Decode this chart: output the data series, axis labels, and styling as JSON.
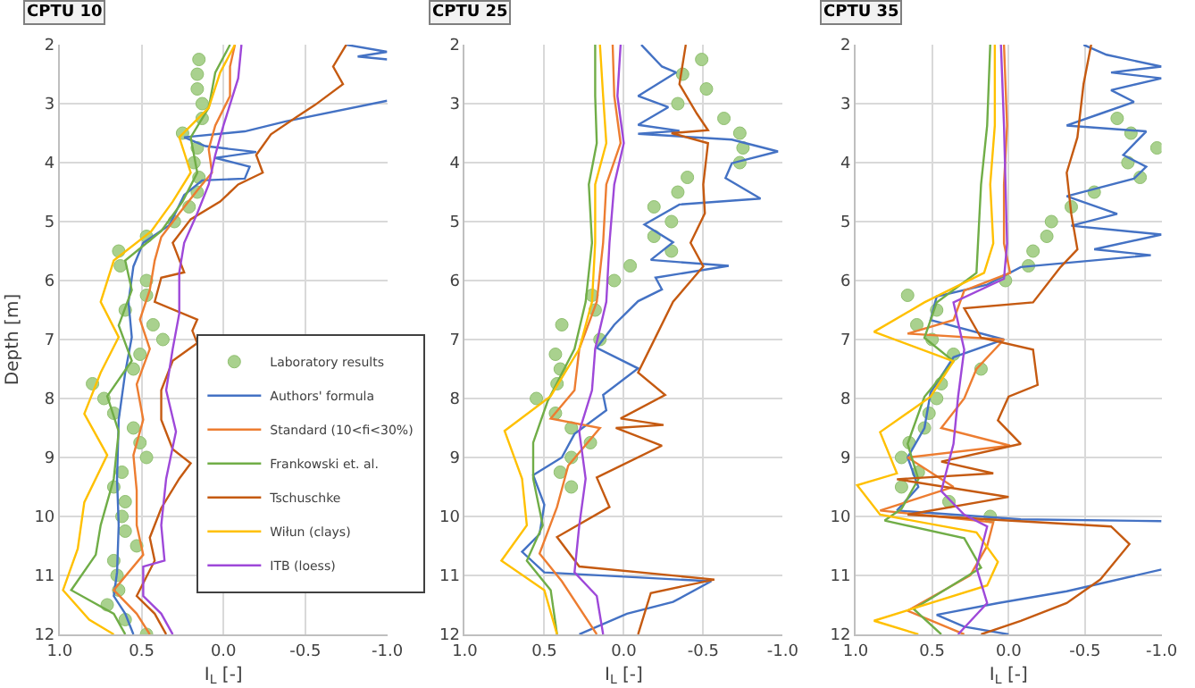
{
  "chart_data": [
    {
      "type": "line",
      "title": "CPTU 10",
      "xlabel": "I$_{L}$ [-]",
      "ylabel": "Depth [m]",
      "xlim": [
        1.0,
        -1.0
      ],
      "ylim": [
        12,
        2
      ],
      "xticks": [
        {
          "value": 1.0,
          "label": "1.0"
        },
        {
          "value": 0.5,
          "label": "0.5"
        },
        {
          "value": 0.0,
          "label": "0.0"
        },
        {
          "value": -0.5,
          "label": "-0.5"
        },
        {
          "value": -1.0,
          "label": "-1.0"
        }
      ],
      "yticks": [
        2,
        3,
        4,
        5,
        6,
        7,
        8,
        9,
        10,
        11,
        12
      ],
      "grid": true,
      "legend": "bottom right",
      "series": [
        {
          "name": "Laboratory results",
          "type": "scatter",
          "marker": "circle",
          "color": "#a9d18e",
          "x": [
            0.15,
            0.16,
            0.16,
            0.13,
            0.13,
            0.25,
            0.16,
            0.18,
            0.15,
            0.16,
            0.21,
            0.3,
            0.47,
            0.64,
            0.63,
            0.47,
            0.47,
            0.6,
            0.43,
            0.37,
            0.51,
            0.55,
            0.8,
            0.73,
            0.67,
            0.55,
            0.51,
            0.47,
            0.62,
            0.67,
            0.6,
            0.62,
            0.6,
            0.53,
            0.67,
            0.65,
            0.64,
            0.71,
            0.6,
            0.47
          ],
          "values": [
            2.25,
            2.5,
            2.75,
            3.0,
            3.25,
            3.5,
            3.75,
            4.0,
            4.25,
            4.5,
            4.75,
            5.0,
            5.25,
            5.5,
            5.75,
            6.0,
            6.25,
            6.5,
            6.75,
            7.0,
            7.25,
            7.5,
            7.75,
            8.0,
            8.25,
            8.5,
            8.75,
            9.0,
            9.25,
            9.5,
            9.75,
            10.0,
            10.25,
            10.5,
            10.75,
            11.0,
            11.25,
            11.5,
            11.75,
            12.0
          ]
        },
        {
          "name": "Authors' formula",
          "color": "#4472c4",
          "x": [
            -0.75,
            -1.0,
            -0.82,
            -1.0,
            null,
            -1.0,
            -0.38,
            -0.13,
            0.24,
            0.11,
            -0.2,
            0.05,
            -0.16,
            -0.13,
            0.13,
            0.24,
            0.33,
            0.49,
            0.55,
            0.58,
            0.56,
            0.6,
            0.64,
            0.65,
            0.64,
            0.65,
            0.67,
            0.6,
            0.55
          ],
          "values": [
            2.0,
            2.12,
            2.2,
            2.25,
            null,
            2.95,
            3.3,
            3.47,
            3.57,
            3.72,
            3.82,
            3.92,
            4.07,
            4.27,
            4.3,
            4.55,
            5.06,
            5.36,
            5.76,
            6.36,
            6.96,
            7.56,
            8.36,
            9.36,
            10.15,
            10.95,
            11.35,
            11.65,
            12.0
          ]
        },
        {
          "name": "Standard (10<fi<30%)",
          "color": "#ed7d31",
          "x": [
            -0.07,
            -0.04,
            -0.04,
            0.05,
            0.09,
            0.07,
            0.16,
            0.27,
            0.38,
            0.42,
            0.45,
            0.51,
            0.45,
            0.53,
            0.49,
            0.55,
            0.53,
            0.53,
            0.49,
            0.67,
            0.53,
            0.45
          ],
          "values": [
            2.0,
            2.37,
            2.87,
            3.37,
            3.77,
            4.17,
            4.47,
            4.86,
            5.26,
            5.66,
            6.16,
            6.66,
            7.16,
            7.76,
            8.36,
            8.96,
            9.56,
            10.15,
            10.65,
            11.25,
            11.65,
            12.0
          ]
        },
        {
          "name": "Frankowski et. al.",
          "color": "#70ad47",
          "x": [
            -0.04,
            0.05,
            0.09,
            0.2,
            0.16,
            0.25,
            0.38,
            0.6,
            0.56,
            0.64,
            0.56,
            0.71,
            0.64,
            0.67,
            0.75,
            0.78,
            0.93,
            0.67,
            0.6
          ],
          "values": [
            2.0,
            2.47,
            3.07,
            3.57,
            4.17,
            4.66,
            5.16,
            5.66,
            6.16,
            6.76,
            7.36,
            7.96,
            8.56,
            9.36,
            10.15,
            10.65,
            11.25,
            11.65,
            12.0
          ]
        },
        {
          "name": "Tschuschke",
          "color": "#c55a11",
          "x": [
            -0.75,
            -0.67,
            -0.73,
            -0.56,
            -0.45,
            -0.29,
            -0.2,
            -0.24,
            -0.09,
            0.02,
            0.2,
            0.31,
            0.24,
            0.38,
            0.42,
            0.16,
            0.19,
            0.16,
            0.31,
            0.38,
            0.38,
            0.31,
            0.2,
            0.27,
            0.38,
            0.45,
            0.42,
            0.53,
            0.42,
            0.35
          ],
          "values": [
            2.0,
            2.37,
            2.67,
            3.02,
            3.22,
            3.52,
            3.87,
            4.17,
            4.37,
            4.66,
            4.96,
            5.36,
            5.86,
            5.95,
            6.36,
            6.66,
            6.85,
            7.06,
            7.36,
            7.86,
            8.36,
            8.86,
            9.1,
            9.36,
            9.86,
            10.36,
            10.75,
            11.35,
            11.65,
            12.0
          ]
        },
        {
          "name": "Wiłun (clays)",
          "color": "#ffc000",
          "x": [
            -0.07,
            0.02,
            0.09,
            0.27,
            0.2,
            0.31,
            0.44,
            0.67,
            0.75,
            0.64,
            0.75,
            0.85,
            0.71,
            0.85,
            0.89,
            0.98,
            0.82,
            0.67
          ],
          "values": [
            2.0,
            2.47,
            3.07,
            3.57,
            4.17,
            4.66,
            5.16,
            5.66,
            6.36,
            6.96,
            7.56,
            8.26,
            8.96,
            9.76,
            10.55,
            11.25,
            11.75,
            12.0
          ]
        },
        {
          "name": "ITB (loess)",
          "color": "#9e48d9",
          "x": [
            -0.11,
            -0.09,
            0.0,
            0.05,
            0.09,
            0.16,
            0.24,
            0.27,
            0.27,
            0.31,
            0.35,
            0.29,
            0.35,
            0.38,
            0.36,
            0.49,
            0.49,
            0.38,
            0.31
          ],
          "values": [
            2.0,
            2.57,
            3.37,
            3.87,
            4.37,
            4.86,
            5.36,
            5.86,
            6.56,
            7.16,
            7.86,
            8.56,
            9.36,
            10.15,
            10.75,
            10.85,
            11.35,
            11.65,
            12.0
          ]
        }
      ]
    },
    {
      "type": "line",
      "title": "CPTU 25",
      "xlabel": "I$_{L}$ [-]",
      "xlim": [
        1.0,
        -1.0
      ],
      "ylim": [
        12,
        2
      ],
      "xticks": [
        {
          "value": 1.0,
          "label": "1.0"
        },
        {
          "value": 0.5,
          "label": "0.5"
        },
        {
          "value": 0.0,
          "label": "0.0"
        },
        {
          "value": -0.5,
          "label": "-0.5"
        },
        {
          "value": -1.0,
          "label": "-1.0"
        }
      ],
      "yticks": [
        2,
        3,
        4,
        5,
        6,
        7,
        8,
        9,
        10,
        11,
        12
      ],
      "grid": true,
      "series": [
        {
          "type": "scatter",
          "marker": "circle",
          "color": "#a9d18e",
          "x": [
            -0.49,
            -0.37,
            -0.52,
            -0.34,
            -0.63,
            -0.73,
            -0.75,
            -0.73,
            -0.4,
            -0.34,
            -0.19,
            -0.3,
            -0.19,
            -0.3,
            -0.04,
            0.06,
            0.2,
            0.18,
            0.39,
            0.15,
            0.43,
            0.4,
            0.42,
            0.55,
            0.43,
            0.33,
            0.21,
            0.33,
            0.4,
            0.33
          ],
          "values": [
            2.25,
            2.5,
            2.75,
            3.0,
            3.25,
            3.5,
            3.75,
            4.0,
            4.25,
            4.5,
            4.75,
            5.0,
            5.25,
            5.5,
            5.75,
            6.0,
            6.25,
            6.5,
            6.75,
            7.0,
            7.25,
            7.5,
            7.75,
            8.0,
            8.25,
            8.5,
            8.75,
            9.0,
            9.25,
            9.5
          ]
        },
        {
          "type": "line",
          "color": "#4472c4",
          "x": [
            -0.11,
            -0.24,
            -0.33,
            -0.09,
            -0.28,
            -0.09,
            -0.35,
            -0.09,
            -0.68,
            -0.97,
            -0.68,
            -0.64,
            -0.86,
            -0.35,
            -0.13,
            -0.31,
            -0.17,
            -0.66,
            -0.2,
            -0.24,
            -0.09,
            0.06,
            0.17,
            -0.09,
            0.13,
            0.11,
            0.31,
            0.39,
            0.57,
            0.5,
            0.53,
            0.64,
            0.5,
            -0.55,
            -0.31,
            -0.02,
            0.28
          ],
          "values": [
            2.0,
            2.37,
            2.47,
            2.87,
            3.06,
            3.36,
            3.46,
            3.51,
            3.61,
            3.81,
            4.01,
            4.26,
            4.61,
            4.71,
            5.05,
            5.35,
            5.65,
            5.75,
            5.95,
            6.15,
            6.35,
            6.75,
            7.14,
            7.49,
            7.94,
            8.2,
            8.6,
            9.0,
            9.3,
            9.8,
            10.3,
            10.6,
            10.95,
            11.1,
            11.45,
            11.65,
            12.0
          ]
        },
        {
          "type": "line",
          "color": "#ed7d31",
          "x": [
            0.07,
            0.06,
            0.02,
            0.11,
            0.13,
            0.17,
            0.28,
            0.31,
            0.46,
            0.15,
            0.35,
            0.42,
            0.53,
            0.39,
            0.17
          ],
          "values": [
            2.0,
            2.87,
            3.67,
            4.37,
            5.36,
            6.36,
            7.16,
            7.86,
            8.34,
            8.5,
            9.14,
            9.84,
            10.63,
            11.1,
            12.0
          ]
        },
        {
          "type": "line",
          "color": "#70ad47",
          "x": [
            0.18,
            0.18,
            0.17,
            0.22,
            0.2,
            0.24,
            0.31,
            0.48,
            0.57,
            0.57,
            0.51,
            0.61,
            0.46,
            0.42
          ],
          "values": [
            2.0,
            2.87,
            3.67,
            4.37,
            5.36,
            6.36,
            7.16,
            8.05,
            8.75,
            9.36,
            10.15,
            10.75,
            11.25,
            12.0
          ]
        },
        {
          "type": "line",
          "color": "#c55a11",
          "x": [
            -0.39,
            -0.35,
            -0.46,
            -0.53,
            -0.3,
            -0.53,
            -0.5,
            -0.51,
            -0.42,
            -0.5,
            -0.31,
            -0.2,
            -0.09,
            -0.26,
            0.02,
            -0.25,
            0.05,
            -0.24,
            0.17,
            0.09,
            0.42,
            0.28,
            -0.57,
            -0.17,
            -0.09
          ],
          "values": [
            2.0,
            2.67,
            3.17,
            3.45,
            3.5,
            3.67,
            4.37,
            4.86,
            5.36,
            5.76,
            6.36,
            6.96,
            7.56,
            7.94,
            8.34,
            8.45,
            8.5,
            8.8,
            9.34,
            9.84,
            10.35,
            10.85,
            11.07,
            11.3,
            12.0
          ]
        },
        {
          "type": "line",
          "color": "#ffc000",
          "x": [
            0.15,
            0.13,
            0.11,
            0.18,
            0.18,
            0.2,
            0.28,
            0.46,
            0.75,
            0.64,
            0.61,
            0.77,
            0.5,
            0.42
          ],
          "values": [
            2.0,
            2.87,
            3.67,
            4.37,
            5.36,
            6.36,
            7.16,
            7.96,
            8.55,
            9.36,
            10.15,
            10.75,
            11.25,
            12.0
          ]
        },
        {
          "type": "line",
          "color": "#9e48d9",
          "x": [
            0.02,
            0.04,
            0.0,
            0.06,
            0.09,
            0.11,
            0.18,
            0.2,
            0.28,
            0.24,
            0.28,
            0.31,
            0.17,
            0.13
          ],
          "values": [
            2.0,
            2.87,
            3.67,
            4.37,
            5.36,
            6.36,
            7.16,
            7.86,
            8.56,
            9.36,
            10.15,
            10.95,
            11.35,
            12.0
          ]
        }
      ]
    },
    {
      "type": "line",
      "title": "CPTU 35",
      "xlabel": "I$_{L}$ [-]",
      "xlim": [
        1.0,
        -1.0
      ],
      "ylim": [
        12,
        2
      ],
      "xticks": [
        {
          "value": 1.0,
          "label": "1.0"
        },
        {
          "value": 0.5,
          "label": "0.5"
        },
        {
          "value": 0.0,
          "label": "0.0"
        },
        {
          "value": -0.5,
          "label": "-0.5"
        },
        {
          "value": -1.0,
          "label": "-1.0"
        }
      ],
      "yticks": [
        2,
        3,
        4,
        5,
        6,
        7,
        8,
        9,
        10,
        11,
        12
      ],
      "grid": true,
      "series": [
        {
          "type": "scatter",
          "marker": "circle",
          "color": "#a9d18e",
          "x": [
            -0.71,
            -0.8,
            -0.97,
            -0.78,
            -0.86,
            -0.56,
            -0.41,
            -0.28,
            -0.25,
            -0.16,
            -0.13,
            0.02,
            0.66,
            0.47,
            0.6,
            0.5,
            0.36,
            0.18,
            0.44,
            0.47,
            0.52,
            0.55,
            0.65,
            0.7,
            0.59,
            0.7,
            0.39,
            0.12
          ],
          "values": [
            3.25,
            3.5,
            3.75,
            4.0,
            4.25,
            4.5,
            4.75,
            5.0,
            5.25,
            5.5,
            5.75,
            6.0,
            6.25,
            6.5,
            6.75,
            7.0,
            7.25,
            7.5,
            7.75,
            8.0,
            8.25,
            8.5,
            8.75,
            9.0,
            9.25,
            9.5,
            9.75,
            10.0
          ]
        },
        {
          "type": "line",
          "color": "#4472c4",
          "x": [
            -0.49,
            -0.64,
            -1.0,
            -0.67,
            -1.0,
            -0.67,
            -0.82,
            -0.6,
            -0.38,
            -0.9,
            -0.75,
            -0.9,
            -0.82,
            -0.38,
            -0.71,
            -0.41,
            -1.0,
            -0.56,
            -0.93,
            -0.08,
            0.14,
            0.47,
            0.51,
            0.03,
            0.36,
            0.51,
            0.55,
            0.66,
            0.59,
            0.73,
            -0.08,
            -1.0,
            null,
            -1.0,
            -0.38,
            0.07,
            0.47,
            0.29,
            0.0
          ],
          "values": [
            2.0,
            2.17,
            2.37,
            2.47,
            2.57,
            2.77,
            2.97,
            3.17,
            3.37,
            3.47,
            3.87,
            4.07,
            4.27,
            4.57,
            4.87,
            5.07,
            5.22,
            5.47,
            5.57,
            5.77,
            6.07,
            6.27,
            6.67,
            7.0,
            7.3,
            7.9,
            8.5,
            9.0,
            9.5,
            9.9,
            10.05,
            10.08,
            null,
            10.9,
            11.27,
            11.47,
            11.67,
            11.87,
            12.0
          ]
        },
        {
          "type": "line",
          "color": "#ed7d31",
          "x": [
            0.03,
            0.01,
            0.03,
            0.03,
            -0.01,
            0.29,
            0.36,
            0.66,
            0.03,
            0.21,
            0.29,
            0.44,
            -0.01,
            0.66,
            0.36,
            0.84,
            0.1,
            0.14,
            0.25,
            0.66,
            0.29
          ],
          "values": [
            2.0,
            3.37,
            4.37,
            5.37,
            5.87,
            6.17,
            6.67,
            6.9,
            7.0,
            7.5,
            8.0,
            8.5,
            8.8,
            9.0,
            9.5,
            9.9,
            10.1,
            10.5,
            11.0,
            11.6,
            12.0
          ]
        },
        {
          "type": "line",
          "color": "#70ad47",
          "x": [
            0.12,
            0.14,
            0.18,
            0.2,
            0.21,
            0.47,
            0.55,
            0.36,
            0.55,
            0.66,
            0.59,
            0.7,
            0.81,
            0.29,
            0.18,
            0.62,
            0.44
          ],
          "values": [
            2.0,
            3.37,
            4.37,
            5.37,
            5.87,
            6.37,
            6.97,
            7.37,
            7.97,
            8.77,
            9.37,
            9.87,
            10.07,
            10.37,
            10.87,
            11.57,
            12.0
          ]
        },
        {
          "type": "line",
          "color": "#c55a11",
          "x": [
            -0.54,
            -0.49,
            -0.45,
            -0.38,
            -0.41,
            -0.45,
            -0.34,
            -0.16,
            0.29,
            0.18,
            -0.16,
            -0.19,
            0.0,
            0.07,
            -0.08,
            0.44,
            0.1,
            0.73,
            0.0,
            0.66,
            -0.67,
            -0.79,
            -0.6,
            -0.38,
            -0.08,
            0.18
          ],
          "values": [
            2.0,
            2.67,
            3.57,
            4.17,
            4.87,
            5.47,
            5.77,
            6.37,
            6.47,
            6.97,
            7.17,
            7.77,
            7.97,
            8.37,
            8.77,
            9.07,
            9.27,
            9.37,
            9.67,
            9.97,
            10.17,
            10.47,
            11.07,
            11.47,
            11.77,
            12.0
          ]
        },
        {
          "type": "line",
          "color": "#ffc000",
          "x": [
            0.09,
            0.09,
            0.12,
            0.1,
            0.16,
            0.55,
            0.88,
            0.36,
            0.51,
            0.84,
            0.73,
            0.99,
            0.84,
            0.21,
            0.07,
            0.14,
            0.88,
            0.59
          ],
          "values": [
            2.0,
            3.37,
            4.37,
            5.37,
            5.87,
            6.37,
            6.87,
            7.37,
            7.97,
            8.57,
            9.27,
            9.47,
            9.97,
            10.27,
            10.77,
            11.17,
            11.77,
            12.0
          ]
        },
        {
          "type": "line",
          "color": "#9e48d9",
          "x": [
            0.05,
            0.03,
            0.01,
            0.03,
            0.36,
            0.29,
            0.33,
            0.36,
            0.44,
            0.29,
            0.14,
            0.21,
            0.14,
            0.33
          ],
          "values": [
            2.0,
            3.37,
            5.37,
            5.97,
            6.37,
            7.17,
            7.97,
            8.77,
            9.57,
            9.97,
            10.17,
            10.87,
            11.47,
            12.0
          ]
        }
      ]
    }
  ]
}
